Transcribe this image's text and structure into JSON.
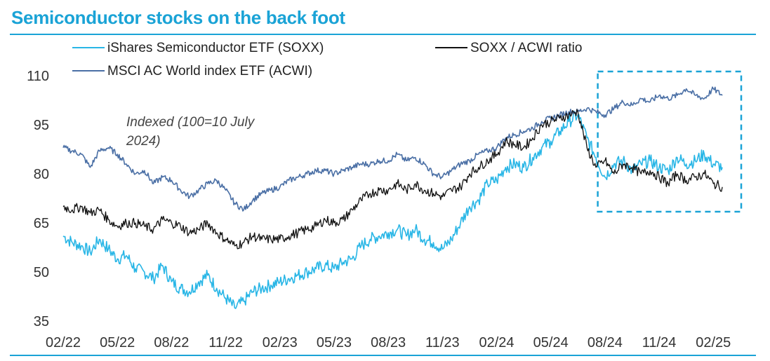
{
  "title": "Semiconductor stocks on the back foot",
  "chart_data": {
    "type": "line",
    "title": "Semiconductor stocks on the back foot",
    "xlabel": "",
    "ylabel": "",
    "annotation_lines": [
      "Indexed (100=10 July",
      "2024)"
    ],
    "ylim": [
      35,
      110
    ],
    "yticks": [
      110,
      95,
      80,
      65,
      50,
      35
    ],
    "xticks": [
      "02/22",
      "05/22",
      "08/22",
      "11/22",
      "02/23",
      "05/23",
      "08/23",
      "11/23",
      "02/24",
      "05/24",
      "08/24",
      "11/24",
      "02/25"
    ],
    "xrange_months": [
      0,
      37
    ],
    "legend_position": "top",
    "highlight_box": {
      "from_month": 29.6,
      "to_month": 37,
      "style": "dashed"
    },
    "colors": {
      "SOXX": "#29b6e6",
      "ACWI": "#4a6fa5",
      "RATIO": "#111111",
      "accent": "#1aa3d6"
    },
    "series": [
      {
        "name": "iShares Semiconductor ETF (SOXX)",
        "key": "SOXX",
        "months": [
          0,
          0.5,
          1,
          1.5,
          2,
          2.5,
          3,
          3.5,
          4,
          4.5,
          5,
          5.5,
          6,
          6.5,
          7,
          7.5,
          8,
          8.5,
          9,
          9.5,
          10,
          10.5,
          11,
          11.5,
          12,
          12.5,
          13,
          13.5,
          14,
          14.5,
          15,
          15.5,
          16,
          16.5,
          17,
          17.5,
          18,
          18.5,
          19,
          19.5,
          20,
          20.5,
          21,
          21.5,
          22,
          22.5,
          23,
          23.5,
          24,
          24.5,
          25,
          25.5,
          26,
          26.5,
          27,
          27.5,
          28,
          28.5,
          29,
          29.5,
          30,
          30.5,
          31,
          31.5,
          32,
          32.5,
          33,
          33.5,
          34,
          34.5,
          35,
          35.5,
          36,
          36.5
        ],
        "values": [
          61,
          59,
          58,
          56,
          60,
          57,
          54,
          55,
          51,
          50,
          48,
          52,
          47,
          45,
          44,
          47,
          49,
          45,
          42,
          39,
          41,
          44,
          45,
          46,
          47,
          48,
          49,
          50,
          51,
          52,
          51,
          53,
          54,
          58,
          60,
          61,
          62,
          63,
          61,
          63,
          60,
          59,
          57,
          60,
          65,
          70,
          72,
          77,
          78,
          82,
          83,
          82,
          85,
          88,
          90,
          93,
          96,
          98,
          91,
          85,
          79,
          83,
          84,
          81,
          83,
          84,
          82,
          81,
          85,
          83,
          84,
          86,
          83,
          82
        ]
      },
      {
        "name": "SOXX / ACWI ratio",
        "key": "RATIO",
        "months": [
          0,
          0.5,
          1,
          1.5,
          2,
          2.5,
          3,
          3.5,
          4,
          4.5,
          5,
          5.5,
          6,
          6.5,
          7,
          7.5,
          8,
          8.5,
          9,
          9.5,
          10,
          10.5,
          11,
          11.5,
          12,
          12.5,
          13,
          13.5,
          14,
          14.5,
          15,
          15.5,
          16,
          16.5,
          17,
          17.5,
          18,
          18.5,
          19,
          19.5,
          20,
          20.5,
          21,
          21.5,
          22,
          22.5,
          23,
          23.5,
          24,
          24.5,
          25,
          25.5,
          26,
          26.5,
          27,
          27.5,
          28,
          28.5,
          29,
          29.5,
          30,
          30.5,
          31,
          31.5,
          32,
          32.5,
          33,
          33.5,
          34,
          34.5,
          35,
          35.5,
          36,
          36.5
        ],
        "values": [
          70,
          69,
          70,
          68,
          69,
          66,
          64,
          65,
          65,
          64,
          63,
          66,
          65,
          64,
          62,
          63,
          65,
          62,
          60,
          58,
          59,
          61,
          60,
          60,
          60,
          61,
          62,
          63,
          64,
          66,
          65,
          66,
          69,
          72,
          74,
          75,
          75,
          77,
          75,
          77,
          75,
          74,
          73,
          75,
          76,
          80,
          82,
          84,
          86,
          90,
          89,
          88,
          91,
          95,
          96,
          97,
          98,
          99,
          88,
          82,
          84,
          80,
          83,
          82,
          80,
          81,
          79,
          77,
          80,
          78,
          79,
          80,
          77,
          76
        ]
      },
      {
        "name": "MSCI AC World index ETF (ACWI)",
        "key": "ACWI",
        "months": [
          0,
          0.5,
          1,
          1.5,
          2,
          2.5,
          3,
          3.5,
          4,
          4.5,
          5,
          5.5,
          6,
          6.5,
          7,
          7.5,
          8,
          8.5,
          9,
          9.5,
          10,
          10.5,
          11,
          11.5,
          12,
          12.5,
          13,
          13.5,
          14,
          14.5,
          15,
          15.5,
          16,
          16.5,
          17,
          17.5,
          18,
          18.5,
          19,
          19.5,
          20,
          20.5,
          21,
          21.5,
          22,
          22.5,
          23,
          23.5,
          24,
          24.5,
          25,
          25.5,
          26,
          26.5,
          27,
          27.5,
          28,
          28.5,
          29,
          29.5,
          30,
          30.5,
          31,
          31.5,
          32,
          32.5,
          33,
          33.5,
          34,
          34.5,
          35,
          35.5,
          36,
          36.5
        ],
        "values": [
          88,
          87,
          86,
          82,
          87,
          88,
          86,
          83,
          80,
          81,
          77,
          79,
          78,
          75,
          73,
          75,
          77,
          78,
          75,
          71,
          69,
          72,
          74,
          75,
          76,
          78,
          79,
          80,
          81,
          81,
          80,
          81,
          82,
          83,
          83,
          84,
          84,
          86,
          84,
          85,
          83,
          80,
          79,
          81,
          83,
          84,
          86,
          87,
          88,
          91,
          92,
          93,
          94,
          96,
          97,
          98,
          99,
          99,
          100,
          99,
          98,
          100,
          102,
          101,
          103,
          102,
          104,
          103,
          104,
          106,
          104,
          103,
          106,
          104
        ]
      }
    ]
  }
}
